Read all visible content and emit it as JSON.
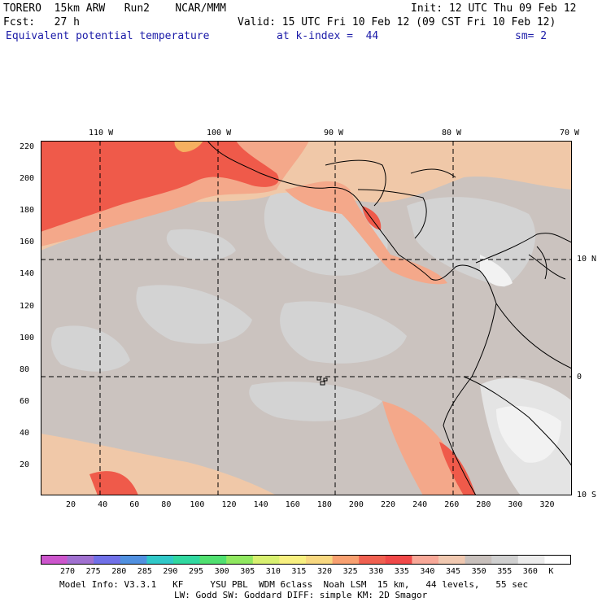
{
  "header": {
    "model": "TORERO  15km ARW   Run2    NCAR/MMM",
    "init": "Init: 12 UTC Thu 09 Feb 12",
    "fcst": "Fcst:   27 h",
    "valid": "Valid: 15 UTC Fri 10 Feb 12 (09 CST Fri 10 Feb 12)",
    "field": "Equivalent potential temperature",
    "level": "at k-index =  44",
    "smooth": "sm= 2"
  },
  "map": {
    "lon_labels": [
      "110 W",
      "100 W",
      "90 W",
      "80 W",
      "70 W"
    ],
    "lat_labels": [
      "10 N",
      "0",
      "10 S"
    ],
    "y_ticks": [
      "220",
      "200",
      "180",
      "160",
      "140",
      "120",
      "100",
      "80",
      "60",
      "40",
      "20"
    ],
    "x_ticks": [
      "20",
      "40",
      "60",
      "80",
      "100",
      "120",
      "140",
      "160",
      "180",
      "200",
      "220",
      "240",
      "260",
      "280",
      "300",
      "320"
    ],
    "colors": {
      "background_level": "#cbc3bf",
      "light_gray": "#d3d3d3",
      "salmon_light": "#f0c8a8",
      "salmon": "#f4a88a",
      "red": "#ef5a4a",
      "orange": "#f6b060",
      "white": "#f2f2f2",
      "border": "#000000"
    }
  },
  "colorbar": {
    "labels": [
      "270",
      "275",
      "280",
      "285",
      "290",
      "295",
      "300",
      "305",
      "310",
      "315",
      "320",
      "325",
      "330",
      "335",
      "340",
      "345",
      "350",
      "355",
      "360",
      "K"
    ],
    "colors": [
      "#cc55cc",
      "#a070d0",
      "#7070e8",
      "#5090e0",
      "#30c8c8",
      "#30d8a0",
      "#50e070",
      "#90e860",
      "#d8f070",
      "#f8f080",
      "#f8d880",
      "#f8a070",
      "#f06050",
      "#f04848",
      "#f8a898",
      "#f0c8b0",
      "#c8c0bc",
      "#d0d0d0",
      "#ececec",
      "#ffffff"
    ]
  },
  "footer": {
    "line1": "Model Info: V3.3.1   KF     YSU PBL  WDM 6class  Noah LSM  15 km,   44 levels,   55 sec",
    "line2": "LW: Godd SW: Goddard DIFF: simple KM: 2D Smagor"
  }
}
